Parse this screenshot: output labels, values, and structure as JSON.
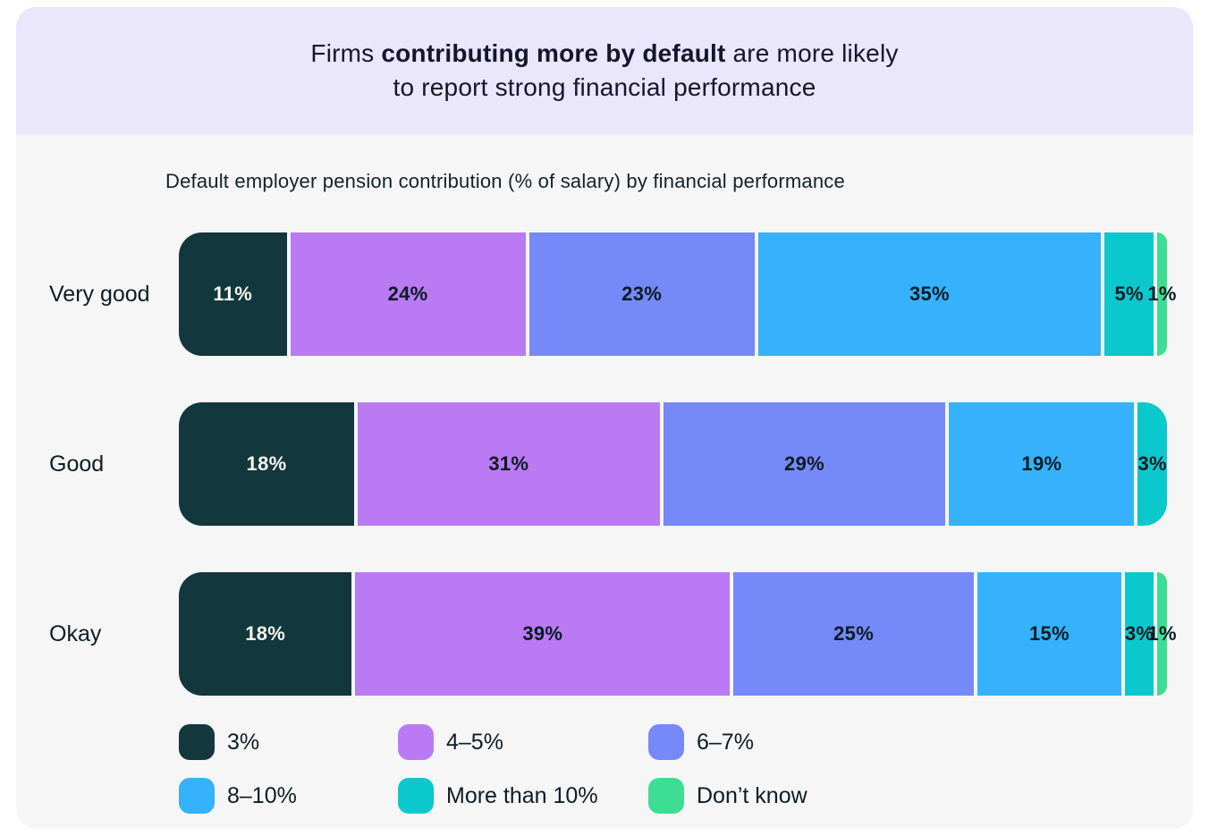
{
  "banner": {
    "line1_prefix": "Firms ",
    "line1_bold": "contributing more by default",
    "line1_suffix": " are more likely",
    "line2": "to report strong financial performance"
  },
  "chart_data": {
    "type": "bar",
    "subtype": "horizontal-stacked-percent",
    "title": "Default employer pension contribution (% of salary) by financial performance",
    "categories": [
      "Very good",
      "Good",
      "Okay"
    ],
    "series": [
      {
        "name": "3%",
        "color": "#12373C",
        "label_text_color": "#FAF7EF",
        "values": [
          11,
          18,
          18
        ]
      },
      {
        "name": "4–5%",
        "color": "#B97AF3",
        "label_text_color": "#0A1B24",
        "values": [
          24,
          31,
          39
        ]
      },
      {
        "name": "6–7%",
        "color": "#7689F8",
        "label_text_color": "#0A1B24",
        "values": [
          23,
          29,
          25
        ]
      },
      {
        "name": "8–10%",
        "color": "#35B2FB",
        "label_text_color": "#0A1B24",
        "values": [
          35,
          19,
          15
        ]
      },
      {
        "name": "More than 10%",
        "color": "#0BC8CD",
        "label_text_color": "#0A1B24",
        "values": [
          5,
          3,
          3
        ]
      },
      {
        "name": "Don’t know",
        "color": "#3EDD94",
        "label_text_color": "#0A1B24",
        "values": [
          1,
          0,
          1
        ]
      }
    ],
    "value_suffix": "%",
    "value_range": [
      0,
      100
    ],
    "grid": false,
    "legend_position": "bottom"
  },
  "style": {
    "banner_bg": "#EAE6FB",
    "chart_bg": "#F6F6F7",
    "page_bg": "#FFFFFF"
  }
}
